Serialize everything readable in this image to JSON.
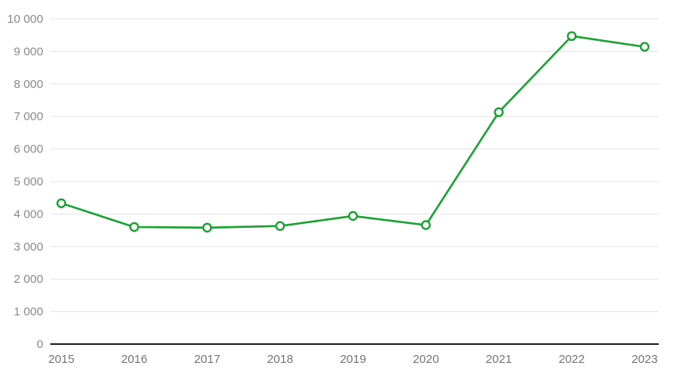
{
  "chart_data": {
    "type": "line",
    "title": "",
    "xlabel": "",
    "ylabel": "",
    "categories": [
      "2015",
      "2016",
      "2017",
      "2018",
      "2019",
      "2020",
      "2021",
      "2022",
      "2023"
    ],
    "series": [
      {
        "values": [
          4330,
          3600,
          3580,
          3630,
          3940,
          3660,
          7130,
          9470,
          9140
        ],
        "color": "#1aa332"
      }
    ],
    "ylim": [
      0,
      10000
    ],
    "yticks": [
      0,
      1000,
      2000,
      3000,
      4000,
      5000,
      6000,
      7000,
      8000,
      9000,
      10000
    ],
    "ytick_labels": [
      "0",
      "1 000",
      "2 000",
      "3 000",
      "4 000",
      "5 000",
      "6 000",
      "7 000",
      "8 000",
      "9 000",
      "10 000"
    ],
    "grid": true,
    "legend": "none",
    "colors": {
      "line": "#1aa332",
      "grid": "#e3e3e3",
      "axis": "#222222",
      "tick_text": "#8a8a8a"
    }
  }
}
